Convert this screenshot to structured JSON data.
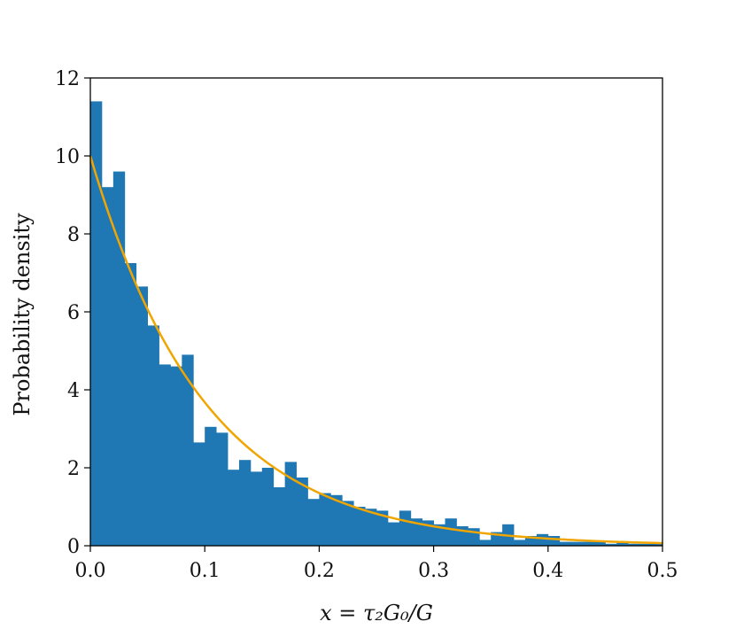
{
  "chart_data": {
    "type": "bar",
    "title": "",
    "xlabel": "x = τ₂G₀/G",
    "ylabel": "Probability density",
    "xlim": [
      0.0,
      0.5
    ],
    "ylim": [
      0,
      12
    ],
    "grid": false,
    "x_ticks": [
      "0.0",
      "0.1",
      "0.2",
      "0.3",
      "0.4",
      "0.5"
    ],
    "y_ticks": [
      "0",
      "2",
      "4",
      "6",
      "8",
      "10",
      "12"
    ],
    "bin_width": 0.01,
    "bin_edges_start": 0.0,
    "values": [
      11.4,
      9.2,
      9.6,
      7.25,
      6.65,
      5.65,
      4.65,
      4.6,
      4.9,
      2.65,
      3.05,
      2.9,
      1.95,
      2.2,
      1.9,
      2.0,
      1.5,
      2.15,
      1.75,
      1.2,
      1.35,
      1.3,
      1.15,
      1.0,
      0.95,
      0.9,
      0.6,
      0.9,
      0.7,
      0.65,
      0.55,
      0.7,
      0.5,
      0.45,
      0.15,
      0.35,
      0.55,
      0.15,
      0.25,
      0.3,
      0.25,
      0.1,
      0.1,
      0.1,
      0.1,
      0.05,
      0.1,
      0.05,
      0.05,
      0.05
    ],
    "fit_curve": {
      "type": "line",
      "function": "10*exp(-10x)",
      "amplitude": 10,
      "rate": 10
    },
    "colors": {
      "bars": "#1f77b4",
      "curve": "#f0a500",
      "axes": "#000000"
    }
  }
}
